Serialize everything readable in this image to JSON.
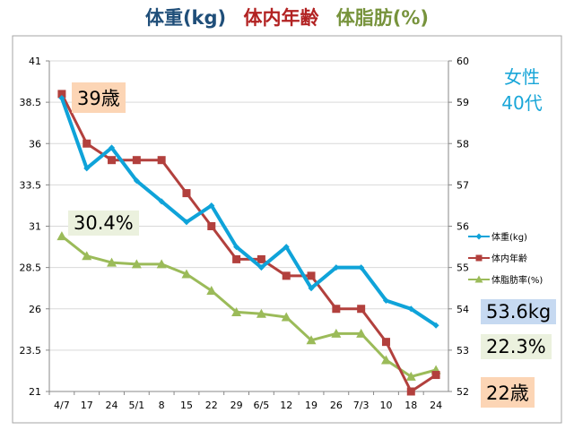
{
  "titles": [
    {
      "text": "体重(kg)",
      "color": "#1f4e79"
    },
    {
      "text": "体内年齢",
      "color": "#b22222"
    },
    {
      "text": "体脂肪(%)",
      "color": "#77933c"
    }
  ],
  "side_labels": {
    "line1": "女性",
    "line2": "40代"
  },
  "callouts": {
    "age_start": "39歳",
    "fat_start": "30.4%",
    "weight_end": "53.6kg",
    "fat_end": "22.3%",
    "age_end": "22歳"
  },
  "colors": {
    "weight": "#0fa3d9",
    "age": "#b2403d",
    "fat": "#9bbb59",
    "box_peach": "#fcd5b5",
    "box_green": "#ebf1de",
    "box_blue": "#c6d9f1",
    "grid": "#d9d9d9"
  },
  "chart_data": {
    "type": "line",
    "categories": [
      "4/7",
      "17",
      "24",
      "5/1",
      "8",
      "15",
      "22",
      "29",
      "6/5",
      "12",
      "19",
      "26",
      "7/3",
      "10",
      "18",
      "24"
    ],
    "left_axis": {
      "min": 21,
      "max": 41,
      "ticks": [
        21,
        23.5,
        26,
        28.5,
        31,
        33.5,
        36,
        38.5,
        41
      ]
    },
    "right_axis": {
      "min": 52,
      "max": 60,
      "ticks": [
        52,
        53,
        54,
        55,
        56,
        57,
        58,
        59,
        60
      ]
    },
    "grid": true,
    "legend_position": "right",
    "series": [
      {
        "name": "体重(kg)",
        "key": "weight",
        "axis": "right",
        "marker": "diamond",
        "values": [
          59.1,
          57.4,
          57.9,
          57.1,
          56.6,
          56.1,
          56.5,
          55.5,
          55.0,
          55.5,
          54.5,
          55.0,
          55.0,
          54.2,
          54.0,
          53.6
        ]
      },
      {
        "name": "体内年齢",
        "key": "age",
        "axis": "left",
        "marker": "square",
        "values": [
          39,
          36,
          35,
          35,
          35,
          33,
          31,
          29,
          29,
          28,
          28,
          26,
          26,
          24,
          21,
          22
        ]
      },
      {
        "name": "体脂肪率(%)",
        "key": "fat",
        "axis": "left",
        "marker": "triangle",
        "values": [
          30.4,
          29.2,
          28.8,
          28.7,
          28.7,
          28.1,
          27.1,
          25.8,
          25.7,
          25.5,
          24.1,
          24.5,
          24.5,
          22.9,
          21.9,
          22.3
        ]
      }
    ]
  }
}
